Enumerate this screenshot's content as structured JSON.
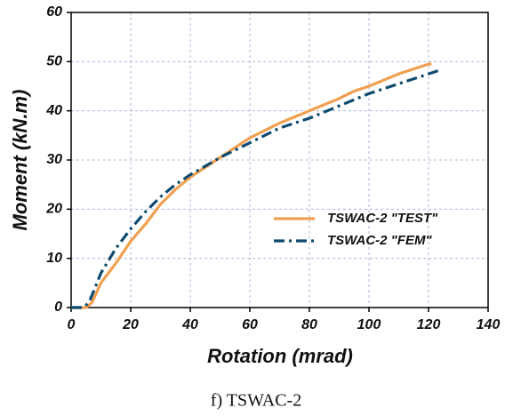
{
  "chart_data": {
    "type": "line",
    "xlabel": "Rotation (mrad)",
    "ylabel": "Moment  (kN.m)",
    "xlim": [
      0,
      140
    ],
    "xticks": [
      0,
      20,
      40,
      60,
      80,
      100,
      120,
      140
    ],
    "ylim": [
      0,
      60
    ],
    "yticks": [
      0,
      10,
      20,
      30,
      40,
      50,
      60
    ],
    "grid": true,
    "legend": "right",
    "series": [
      {
        "name": "TSWAC-2 \"TEST\"",
        "color": "#f0a050",
        "dash": "solid",
        "x": [
          0,
          5,
          7,
          10,
          15,
          20,
          25,
          30,
          35,
          40,
          50,
          60,
          70,
          80,
          82,
          90,
          95,
          100,
          110,
          120,
          121
        ],
        "values": [
          0,
          0,
          1,
          5,
          9,
          13.5,
          17,
          21,
          24,
          26.5,
          30.5,
          34.5,
          37.5,
          40,
          40.5,
          42.5,
          44,
          45,
          47.5,
          49.5,
          49.5
        ]
      },
      {
        "name": "TSWAC-2 \"FEM\"",
        "color": "#0d4a6e",
        "dash": "dashdot",
        "x": [
          0,
          4,
          6,
          8,
          10,
          15,
          20,
          25,
          30,
          35,
          40,
          50,
          60,
          70,
          80,
          90,
          100,
          110,
          120,
          124
        ],
        "values": [
          0,
          0,
          1,
          4,
          7,
          12,
          16,
          19.5,
          22.5,
          25,
          27,
          30.5,
          33.5,
          36.5,
          38.5,
          41,
          43.5,
          45.5,
          47.5,
          48.3
        ]
      }
    ]
  },
  "caption": "f) TSWAC-2"
}
